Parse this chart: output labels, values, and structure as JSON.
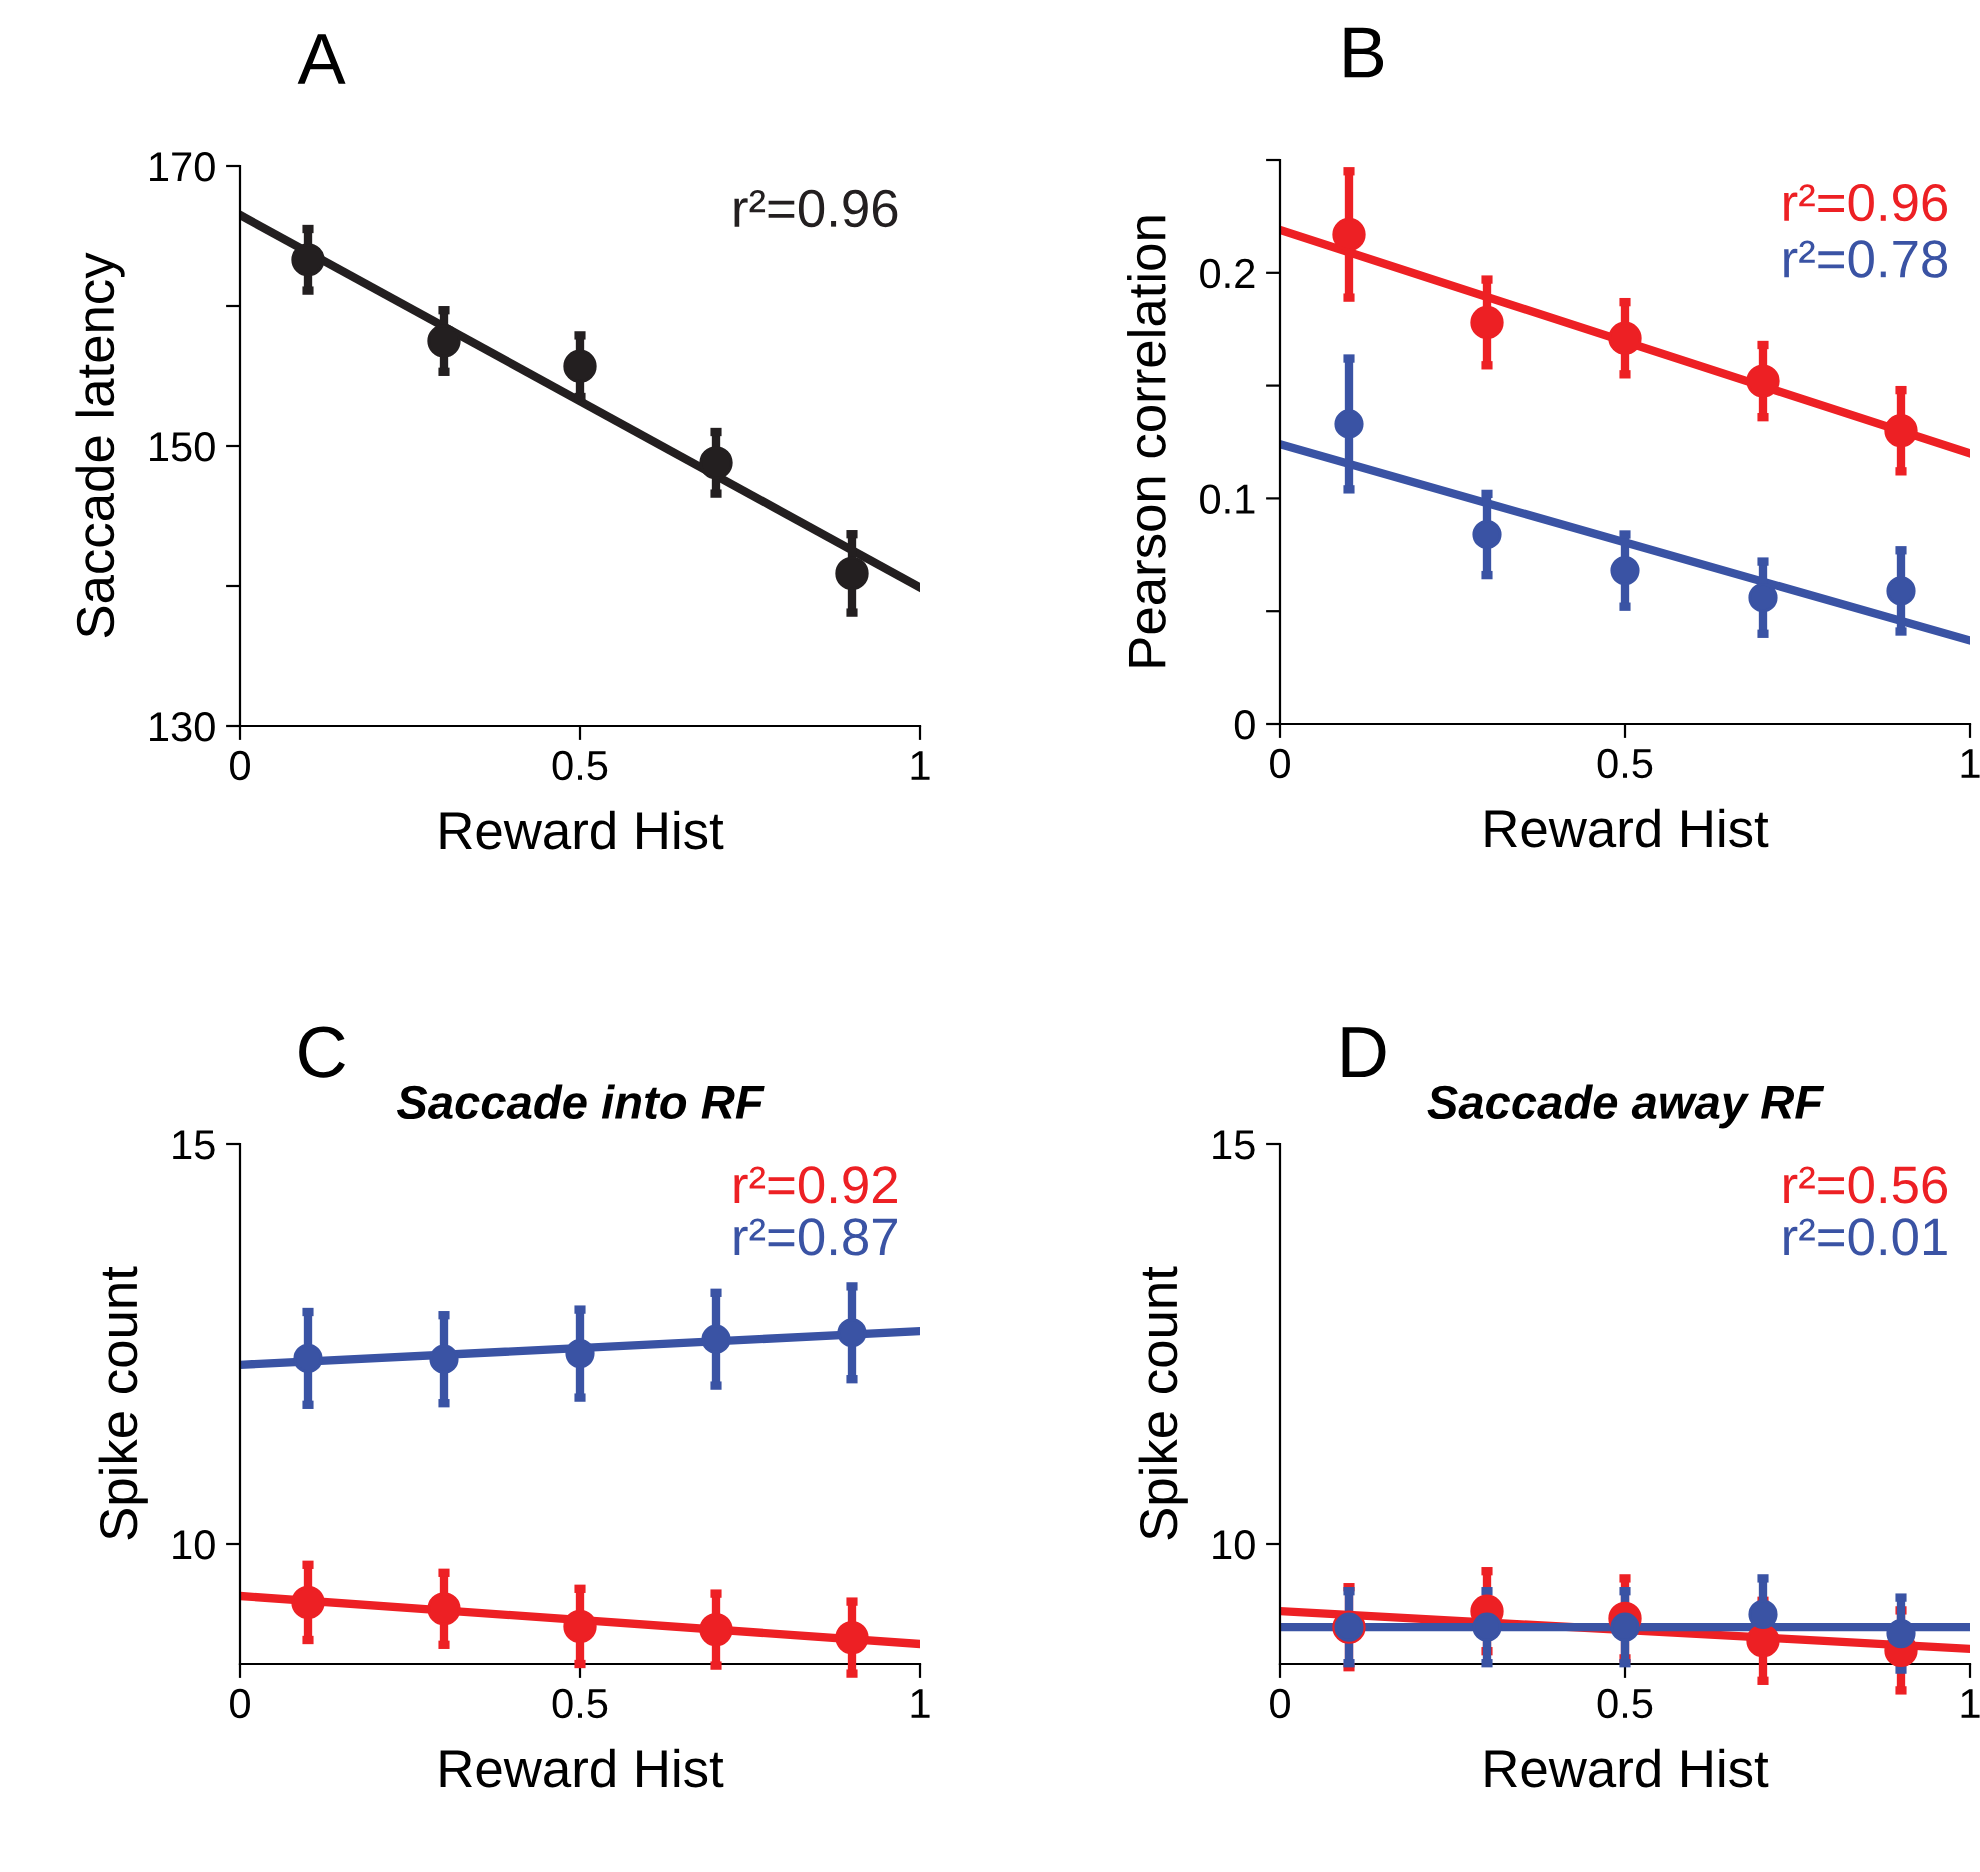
{
  "chart_data": [
    {
      "type": "scatter",
      "title": "A",
      "xlabel": "Reward Hist",
      "ylabel": "Saccade latency",
      "xlim": [
        0,
        1
      ],
      "xticks": [
        0,
        0.5,
        1
      ],
      "ylim": [
        130,
        170
      ],
      "yticks": [
        {
          "value": 130,
          "label": "130"
        },
        {
          "value": 140,
          "label": null
        },
        {
          "value": 150,
          "label": "150"
        },
        {
          "value": 160,
          "label": null
        },
        {
          "value": 170,
          "label": "170"
        }
      ],
      "grid": false,
      "annotations": [
        "r²=0.96"
      ],
      "series": [
        {
          "marker": "circle",
          "color": "#231f20",
          "x": [
            0.1,
            0.3,
            0.5,
            0.7,
            0.9
          ],
          "values": [
            163.3,
            157.5,
            155.7,
            148.8,
            140.9
          ],
          "errors": [
            2.2,
            2.2,
            2.2,
            2.2,
            2.8
          ]
        },
        {
          "type": "line",
          "marker": "none",
          "color": "#231f20",
          "x": [
            0,
            1
          ],
          "values": [
            166.5,
            139.9
          ]
        }
      ]
    },
    {
      "type": "scatter",
      "title": "B",
      "xlabel": "Reward Hist",
      "ylabel": "Pearson correlation",
      "xlim": [
        0,
        1
      ],
      "xticks": [
        0,
        0.5,
        1
      ],
      "ylim": [
        0,
        0.25
      ],
      "yticks": [
        0,
        {
          "value": 0.05,
          "label": null
        },
        0.1,
        {
          "value": 0.15,
          "label": null
        },
        0.2,
        {
          "value": 0.25,
          "label": null
        }
      ],
      "grid": false,
      "annotations": [
        "r²=0.96",
        "r²=0.78"
      ],
      "series": [
        {
          "marker": "circle",
          "color": "#ed2024",
          "x": [
            0.1,
            0.3,
            0.5,
            0.7,
            0.9
          ],
          "values": [
            0.217,
            0.178,
            0.171,
            0.152,
            0.13
          ],
          "errors": [
            0.028,
            0.019,
            0.016,
            0.016,
            0.018
          ]
        },
        {
          "marker": "circle",
          "color": "#3a53a4",
          "x": [
            0.1,
            0.3,
            0.5,
            0.7,
            0.9
          ],
          "values": [
            0.133,
            0.084,
            0.068,
            0.056,
            0.059
          ],
          "errors": [
            0.029,
            0.018,
            0.016,
            0.016,
            0.018
          ]
        },
        {
          "type": "line",
          "marker": "none",
          "color": "#ed2024",
          "x": [
            0,
            1
          ],
          "values": [
            0.219,
            0.12
          ]
        },
        {
          "type": "line",
          "marker": "none",
          "color": "#3a53a4",
          "x": [
            0,
            1
          ],
          "values": [
            0.124,
            0.037
          ]
        }
      ]
    },
    {
      "type": "scatter",
      "title": "C",
      "subtitle": "Saccade into RF",
      "xlabel": "Reward Hist",
      "ylabel": "Spike count",
      "xlim": [
        0,
        1
      ],
      "xticks": [
        0,
        0.5,
        1
      ],
      "ylim": [
        8.5,
        15
      ],
      "yticks": [
        10,
        15
      ],
      "grid": false,
      "annotations": [
        "r²=0.92",
        "r²=0.87"
      ],
      "series": [
        {
          "marker": "circle",
          "color": "#ed2024",
          "x": [
            0.1,
            0.3,
            0.5,
            0.7,
            0.9
          ],
          "values": [
            9.27,
            9.19,
            8.97,
            8.93,
            8.83
          ],
          "errors": [
            0.47,
            0.45,
            0.47,
            0.45,
            0.45
          ]
        },
        {
          "marker": "circle",
          "color": "#3a53a4",
          "x": [
            0.1,
            0.3,
            0.5,
            0.7,
            0.9
          ],
          "values": [
            12.32,
            12.31,
            12.38,
            12.56,
            12.64
          ],
          "errors": [
            0.58,
            0.55,
            0.55,
            0.58,
            0.58
          ]
        },
        {
          "type": "line",
          "marker": "none",
          "color": "#ed2024",
          "x": [
            0,
            1
          ],
          "values": [
            9.35,
            8.75
          ]
        },
        {
          "type": "line",
          "marker": "none",
          "color": "#3a53a4",
          "x": [
            0,
            1
          ],
          "values": [
            12.24,
            12.66
          ]
        }
      ]
    },
    {
      "type": "scatter",
      "title": "D",
      "subtitle": "Saccade away RF",
      "xlabel": "Reward Hist",
      "ylabel": "Spike count",
      "xlim": [
        0,
        1
      ],
      "xticks": [
        0,
        0.5,
        1
      ],
      "ylim": [
        8.5,
        15
      ],
      "yticks": [
        10,
        15
      ],
      "grid": false,
      "annotations": [
        "r²=0.56",
        "r²=0.01"
      ],
      "series": [
        {
          "marker": "circle",
          "color": "#ed2024",
          "x": [
            0.1,
            0.3,
            0.5,
            0.7,
            0.9
          ],
          "values": [
            8.96,
            9.16,
            9.07,
            8.79,
            8.67
          ],
          "errors": [
            0.5,
            0.5,
            0.5,
            0.5,
            0.5
          ]
        },
        {
          "marker": "circle",
          "color": "#3a53a4",
          "x": [
            0.1,
            0.3,
            0.5,
            0.7,
            0.9
          ],
          "values": [
            8.96,
            8.96,
            8.96,
            9.12,
            8.88
          ],
          "errors": [
            0.45,
            0.45,
            0.45,
            0.45,
            0.45
          ]
        },
        {
          "type": "line",
          "marker": "none",
          "color": "#ed2024",
          "x": [
            0,
            1
          ],
          "values": [
            9.16,
            8.69
          ]
        },
        {
          "type": "line",
          "marker": "none",
          "color": "#3a53a4",
          "x": [
            0,
            1
          ],
          "values": [
            8.96,
            8.96
          ]
        }
      ]
    }
  ]
}
